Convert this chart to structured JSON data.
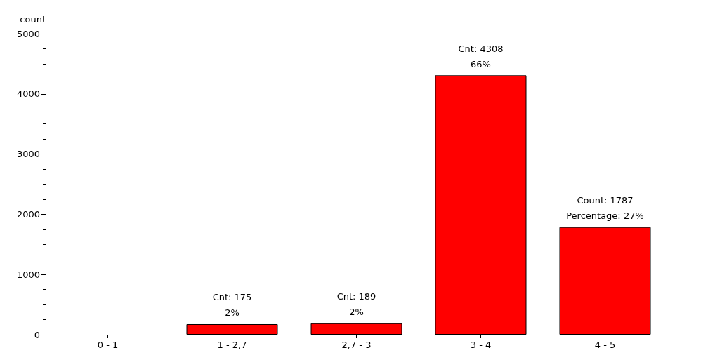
{
  "chart_data": {
    "type": "bar",
    "ylabel": "count",
    "categories": [
      "0 - 1",
      "1 - 2,7",
      "2,7 - 3",
      "3 - 4",
      "4 - 5"
    ],
    "values": [
      0,
      175,
      189,
      4308,
      1787
    ],
    "value_labels": [
      null,
      "Cnt: 175\n2%",
      "Cnt: 189\n2%",
      "Cnt: 4308\n66%",
      "Count: 1787\nPercentage: 27%"
    ],
    "color": "#ff0000",
    "ylim": [
      0,
      5000
    ],
    "yticks": [
      0,
      1000,
      2000,
      3000,
      4000,
      5000
    ],
    "grid": false
  }
}
